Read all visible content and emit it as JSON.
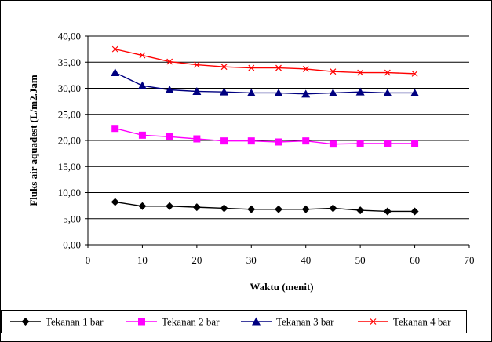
{
  "chart_data": {
    "type": "line",
    "xlabel": "Waktu (menit)",
    "ylabel": "Fluks air aquadest (L/m2.Jam",
    "xlim": [
      0,
      70
    ],
    "ylim": [
      0,
      40
    ],
    "x_ticks": [
      "0",
      "10",
      "20",
      "30",
      "40",
      "50",
      "60",
      "70"
    ],
    "y_ticks": [
      "0,00",
      "5,00",
      "10,00",
      "15,00",
      "20,00",
      "25,00",
      "30,00",
      "35,00",
      "40,00"
    ],
    "grid": "horizontal",
    "legend_position": "bottom",
    "x": [
      5,
      10,
      15,
      20,
      25,
      30,
      35,
      40,
      45,
      50,
      55,
      60
    ],
    "series": [
      {
        "name": "Tekanan 1 bar",
        "color": "#000000",
        "marker": "diamond",
        "values": [
          8.2,
          7.4,
          7.4,
          7.2,
          7.0,
          6.8,
          6.8,
          6.8,
          7.0,
          6.6,
          6.4,
          6.4
        ]
      },
      {
        "name": "Tekanan 2 bar",
        "color": "#ff00ff",
        "marker": "square",
        "values": [
          22.3,
          21.0,
          20.7,
          20.3,
          19.9,
          19.9,
          19.7,
          19.9,
          19.3,
          19.4,
          19.4,
          19.4
        ]
      },
      {
        "name": "Tekanan 3 bar",
        "color": "#000080",
        "marker": "triangle",
        "values": [
          33.0,
          30.5,
          29.7,
          29.4,
          29.3,
          29.1,
          29.1,
          28.9,
          29.1,
          29.3,
          29.1,
          29.1
        ]
      },
      {
        "name": "Tekanan 4 bar",
        "color": "#ff0000",
        "marker": "x",
        "values": [
          37.5,
          36.3,
          35.1,
          34.5,
          34.1,
          33.9,
          33.9,
          33.7,
          33.2,
          33.0,
          33.0,
          32.8
        ]
      }
    ]
  }
}
